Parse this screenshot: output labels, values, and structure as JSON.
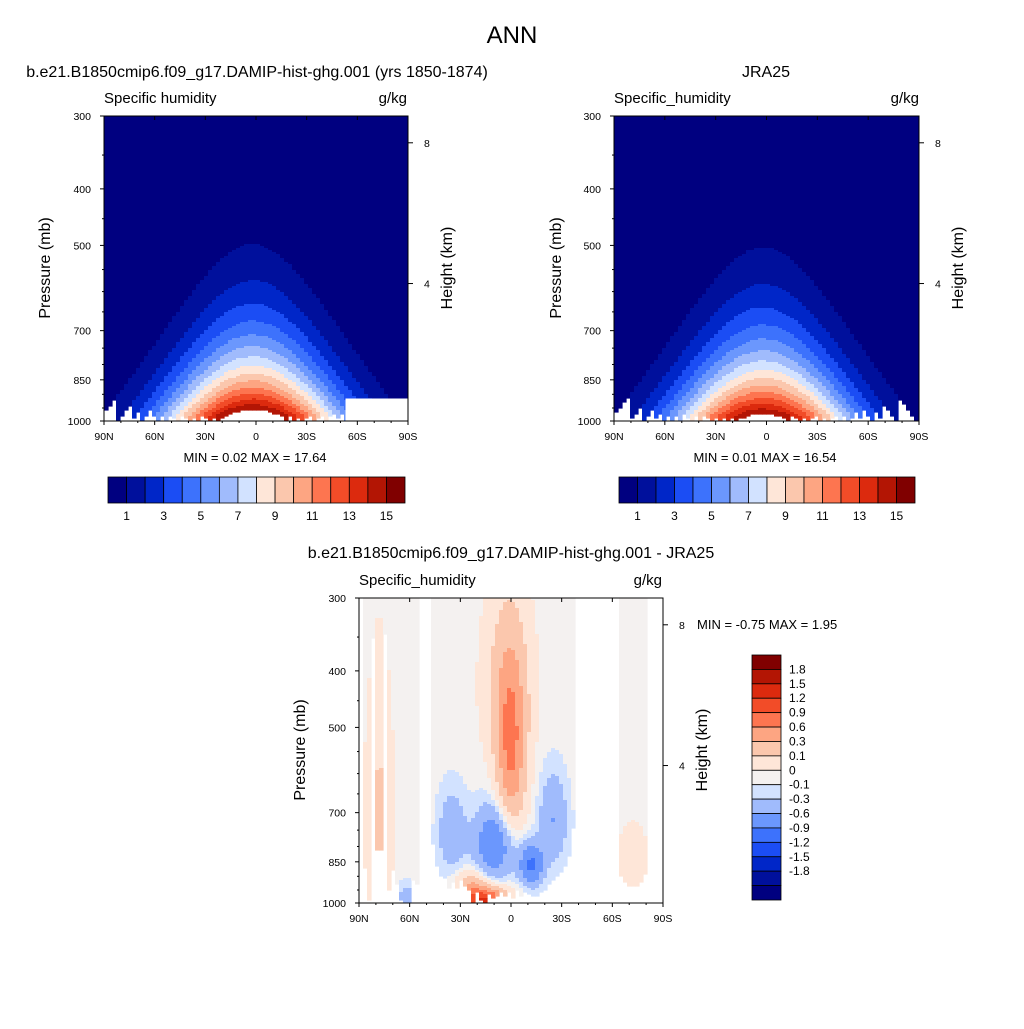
{
  "main_title": "ANN",
  "chart_data": [
    {
      "type": "contour",
      "id": "model",
      "title": "b.e21.B1850cmip6.f09_g17.DAMIP-hist-ghg.001 (yrs 1850-1874)",
      "variable_label": "Specific humidity",
      "units_label": "g/kg",
      "ylabel": "Pressure (mb)",
      "y2label": "Height (km)",
      "yticks": [
        300,
        400,
        500,
        700,
        850,
        1000
      ],
      "y2ticks": [
        8,
        4
      ],
      "xticks": [
        "90N",
        "60N",
        "30N",
        "0",
        "30S",
        "60S",
        "90S"
      ],
      "xlim": [
        90,
        -90
      ],
      "ylim": [
        1000,
        300
      ],
      "stats": "MIN =   0.02  MAX =  17.64",
      "min": 0.02,
      "max": 17.64,
      "peak_lat": 2,
      "peak_value": 17.64,
      "missing_region": "60S-90S below 900 mb",
      "levels": [
        1,
        2,
        3,
        4,
        5,
        6,
        7,
        8,
        9,
        10,
        11,
        12,
        13,
        14,
        15
      ],
      "colorbar_labels": [
        "1",
        "3",
        "5",
        "7",
        "9",
        "11",
        "13",
        "15"
      ]
    },
    {
      "type": "contour",
      "id": "obs",
      "title": "JRA25",
      "variable_label": "Specific_humidity",
      "units_label": "g/kg",
      "ylabel": "Pressure (mb)",
      "y2label": "Height (km)",
      "yticks": [
        300,
        400,
        500,
        700,
        850,
        1000
      ],
      "y2ticks": [
        8,
        4
      ],
      "xticks": [
        "90N",
        "60N",
        "30N",
        "0",
        "30S",
        "60S",
        "90S"
      ],
      "xlim": [
        90,
        -90
      ],
      "ylim": [
        1000,
        300
      ],
      "stats": "MIN =   0.01  MAX =  16.54",
      "min": 0.01,
      "max": 16.54,
      "peak_lat": 2,
      "peak_value": 16.54,
      "levels": [
        1,
        2,
        3,
        4,
        5,
        6,
        7,
        8,
        9,
        10,
        11,
        12,
        13,
        14,
        15
      ],
      "colorbar_labels": [
        "1",
        "3",
        "5",
        "7",
        "9",
        "11",
        "13",
        "15"
      ]
    },
    {
      "type": "contour",
      "id": "diff",
      "title": "b.e21.B1850cmip6.f09_g17.DAMIP-hist-ghg.001 - JRA25",
      "variable_label": "Specific_humidity",
      "units_label": "g/kg",
      "ylabel": "Pressure (mb)",
      "y2label": "Height (km)",
      "yticks": [
        300,
        400,
        500,
        700,
        850,
        1000
      ],
      "y2ticks": [
        8,
        4
      ],
      "xticks": [
        "90N",
        "60N",
        "30N",
        "0",
        "30S",
        "60S",
        "90S"
      ],
      "xlim": [
        90,
        -90
      ],
      "ylim": [
        1000,
        300
      ],
      "stats": "MIN =  -0.75  MAX =   1.95",
      "min": -0.75,
      "max": 1.95,
      "levels": [
        -1.8,
        -1.5,
        -1.2,
        -0.9,
        -0.6,
        -0.3,
        -0.1,
        0,
        0.1,
        0.3,
        0.6,
        0.9,
        1.2,
        1.5,
        1.8
      ],
      "colorbar_labels": [
        "1.8",
        "1.5",
        "1.2",
        "0.9",
        "0.6",
        "0.3",
        "0.1",
        "0",
        "-0.1",
        "-0.3",
        "-0.6",
        "-0.9",
        "-1.2",
        "-1.5",
        "-1.8"
      ],
      "features": [
        {
          "lat": 15,
          "p": 990,
          "value": 1.3
        },
        {
          "lat": 0,
          "p": 560,
          "value": 0.9
        },
        {
          "lat": 10,
          "p": 780,
          "value": -0.6
        },
        {
          "lat": -12,
          "p": 860,
          "value": -0.7
        }
      ]
    }
  ],
  "colors": {
    "seq_fill": [
      "#000080",
      "#00109c",
      "#0026c8",
      "#1b4df4",
      "#3d72fc",
      "#6b97fd",
      "#a0bbfc",
      "#d2e2ff",
      "#fee6d8",
      "#fbc7ad",
      "#fda582",
      "#fd7550",
      "#f24c28",
      "#dc2a0e",
      "#b31504",
      "#800000"
    ],
    "div_fill": [
      "#800000",
      "#b31504",
      "#dc2a0e",
      "#f24c28",
      "#fd7550",
      "#fda582",
      "#fbc7ad",
      "#fee6d8",
      "#f4f1f0",
      "#d2e2ff",
      "#a0bbfc",
      "#6b97fd",
      "#3d72fc",
      "#1b4df4",
      "#0026c8",
      "#00109c",
      "#000080"
    ]
  }
}
